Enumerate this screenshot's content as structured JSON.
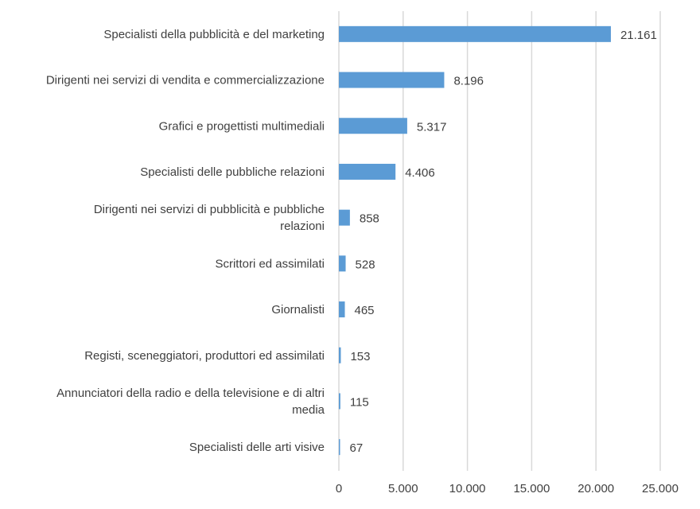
{
  "chart_data": {
    "type": "bar",
    "orientation": "horizontal",
    "categories": [
      "Specialisti della pubblicità e del marketing",
      "Dirigenti nei servizi di vendita e commercializzazione",
      "Grafici e progettisti multimediali",
      "Specialisti delle pubbliche relazioni",
      "Dirigenti nei servizi di pubblicità e pubbliche relazioni",
      "Scrittori ed assimilati",
      "Giornalisti",
      "Registi, sceneggiatori, produttori ed assimilati",
      "Annunciatori della radio e della televisione e di altri media",
      "Specialisti delle arti visive"
    ],
    "values": [
      21161,
      8196,
      5317,
      4406,
      858,
      528,
      465,
      153,
      115,
      67
    ],
    "value_labels": [
      "21.161",
      "8.196",
      "5.317",
      "4.406",
      "858",
      "528",
      "465",
      "153",
      "115",
      "67"
    ],
    "category_label_lines": [
      [
        "Specialisti della pubblicità e del marketing"
      ],
      [
        "Dirigenti nei servizi di vendita e commercializzazione"
      ],
      [
        "Grafici e progettisti multimediali"
      ],
      [
        "Specialisti delle pubbliche relazioni"
      ],
      [
        "Dirigenti nei servizi di pubblicità e pubbliche",
        "relazioni"
      ],
      [
        "Scrittori ed assimilati"
      ],
      [
        "Giornalisti"
      ],
      [
        "Registi, sceneggiatori, produttori ed assimilati"
      ],
      [
        "Annunciatori della radio e della televisione e di altri",
        "media"
      ],
      [
        "Specialisti delle arti visive"
      ]
    ],
    "xlim": [
      0,
      25000
    ],
    "xticks": [
      0,
      5000,
      10000,
      15000,
      20000,
      25000
    ],
    "xtick_labels": [
      "0",
      "5.000",
      "10.000",
      "15.000",
      "20.000",
      "25.000"
    ],
    "title": "",
    "xlabel": "",
    "ylabel": "",
    "grid": "vertical",
    "legend": "none",
    "colors": {
      "bar": "#5B9BD5",
      "grid": "#D9D9D9",
      "text": "#404040"
    }
  }
}
